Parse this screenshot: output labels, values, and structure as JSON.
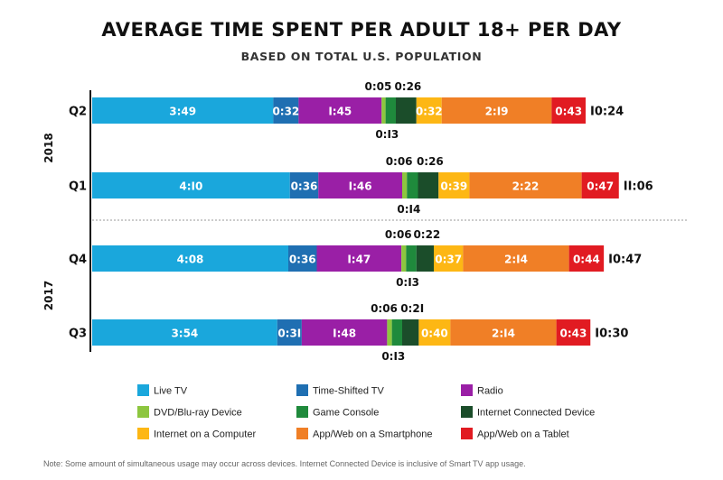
{
  "chart_data": {
    "type": "bar",
    "orientation": "horizontal",
    "stacked": true,
    "title": "AVERAGE TIME SPENT PER ADULT 18+ PER DAY",
    "subtitle": "BASED ON TOTAL U.S. POPULATION",
    "unit": "hours:minutes",
    "groups": [
      {
        "label": "2018",
        "rows": [
          "Q2",
          "Q1"
        ]
      },
      {
        "label": "2017",
        "rows": [
          "Q4",
          "Q3"
        ]
      }
    ],
    "categories": [
      "Q2",
      "Q1",
      "Q4",
      "Q3"
    ],
    "series": [
      {
        "name": "Live TV",
        "color": "#1aa7dc",
        "values": [
          "3:49",
          "4:10",
          "4:08",
          "3:54"
        ]
      },
      {
        "name": "Time-Shifted TV",
        "color": "#1f6fb2",
        "values": [
          "0:32",
          "0:36",
          "0:36",
          "0:31"
        ]
      },
      {
        "name": "Radio",
        "color": "#9a1fa6",
        "values": [
          "1:45",
          "1:46",
          "1:47",
          "1:48"
        ]
      },
      {
        "name": "DVD/Blu-ray Device",
        "color": "#8dc63f",
        "values": [
          "0:05",
          "0:06",
          "0:06",
          "0:06"
        ]
      },
      {
        "name": "Game Console",
        "color": "#1f8a3c",
        "values": [
          "0:13",
          "0:14",
          "0:13",
          "0:13"
        ]
      },
      {
        "name": "Internet Connected Device",
        "color": "#1b4d2a",
        "values": [
          "0:26",
          "0:26",
          "0:22",
          "0:21"
        ]
      },
      {
        "name": "Internet on a Computer",
        "color": "#fdb714",
        "values": [
          "0:32",
          "0:39",
          "0:37",
          "0:40"
        ]
      },
      {
        "name": "App/Web on a Smartphone",
        "color": "#f07f26",
        "values": [
          "2:19",
          "2:22",
          "2:14",
          "2:14"
        ]
      },
      {
        "name": "App/Web on a Tablet",
        "color": "#e11b22",
        "values": [
          "0:43",
          "0:47",
          "0:44",
          "0:43"
        ]
      }
    ],
    "totals": [
      "10:24",
      "11:06",
      "10:47",
      "10:30"
    ],
    "legend_placement": "bottom"
  },
  "note": "Note: Some amount of simultaneous usage may occur across devices. Internet Connected Device is inclusive of Smart TV app usage."
}
